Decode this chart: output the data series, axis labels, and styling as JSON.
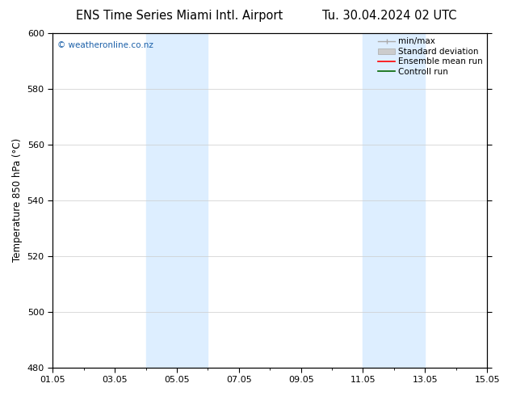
{
  "title_left": "ENS Time Series Miami Intl. Airport",
  "title_right": "Tu. 30.04.2024 02 UTC",
  "ylabel": "Temperature 850 hPa (°C)",
  "watermark": "© weatheronline.co.nz",
  "ylim": [
    480,
    600
  ],
  "yticks": [
    480,
    500,
    520,
    540,
    560,
    580,
    600
  ],
  "xtick_labels": [
    "01.05",
    "03.05",
    "05.05",
    "07.05",
    "09.05",
    "11.05",
    "13.05",
    "15.05"
  ],
  "xtick_positions": [
    0,
    2,
    4,
    6,
    8,
    10,
    12,
    14
  ],
  "xlim": [
    0,
    14
  ],
  "shaded_regions": [
    {
      "x_start": 3,
      "x_end": 5,
      "color": "#ddeeff"
    },
    {
      "x_start": 10,
      "x_end": 12,
      "color": "#ddeeff"
    }
  ],
  "legend_entries": [
    {
      "label": "min/max"
    },
    {
      "label": "Standard deviation"
    },
    {
      "label": "Ensemble mean run"
    },
    {
      "label": "Controll run"
    }
  ],
  "background_color": "#ffffff",
  "plot_bg_color": "#ffffff",
  "grid_color": "#cccccc",
  "title_fontsize": 10.5,
  "tick_fontsize": 8,
  "ylabel_fontsize": 8.5,
  "watermark_color": "#1a5fa8",
  "legend_fontsize": 7.5
}
